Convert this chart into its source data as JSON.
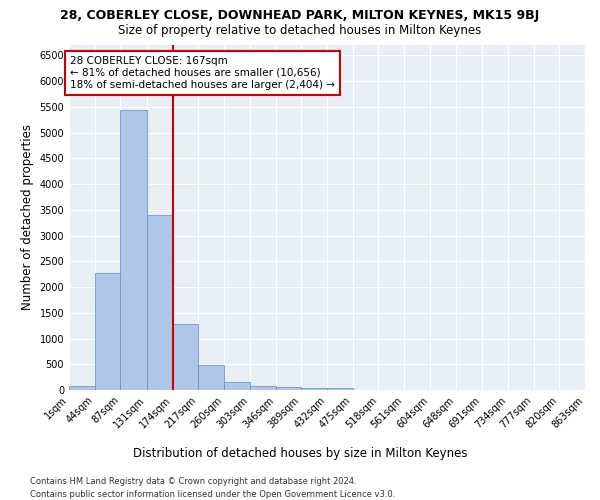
{
  "title_line1": "28, COBERLEY CLOSE, DOWNHEAD PARK, MILTON KEYNES, MK15 9BJ",
  "title_line2": "Size of property relative to detached houses in Milton Keynes",
  "xlabel": "Distribution of detached houses by size in Milton Keynes",
  "ylabel": "Number of detached properties",
  "footnote1": "Contains HM Land Registry data © Crown copyright and database right 2024.",
  "footnote2": "Contains public sector information licensed under the Open Government Licence v3.0.",
  "annotation_title": "28 COBERLEY CLOSE: 167sqm",
  "annotation_line1": "← 81% of detached houses are smaller (10,656)",
  "annotation_line2": "18% of semi-detached houses are larger (2,404) →",
  "property_size": 167,
  "vline_x": 174,
  "bar_color": "#aec6e8",
  "bar_edge_color": "#5b8dc8",
  "vline_color": "#cc0000",
  "annotation_box_color": "#cc0000",
  "bins": [
    1,
    44,
    87,
    131,
    174,
    217,
    260,
    303,
    346,
    389,
    432,
    475,
    518,
    561,
    604,
    648,
    691,
    734,
    777,
    820,
    863
  ],
  "counts": [
    75,
    2280,
    5430,
    3400,
    1290,
    480,
    165,
    80,
    55,
    45,
    30,
    0,
    0,
    0,
    0,
    0,
    0,
    0,
    0,
    0
  ],
  "ylim": [
    0,
    6700
  ],
  "yticks": [
    0,
    500,
    1000,
    1500,
    2000,
    2500,
    3000,
    3500,
    4000,
    4500,
    5000,
    5500,
    6000,
    6500
  ],
  "bg_color": "#e8eef5",
  "fig_bg_color": "#ffffff",
  "title_fontsize": 9,
  "subtitle_fontsize": 8.5,
  "tick_label_fontsize": 7,
  "axis_label_fontsize": 8.5,
  "annotation_fontsize": 7.5,
  "footnote_fontsize": 6
}
